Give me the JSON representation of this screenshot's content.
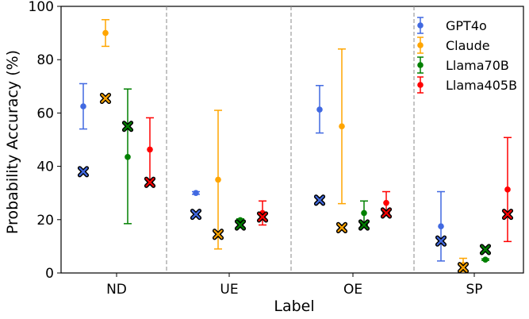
{
  "chart_data": {
    "type": "scatter",
    "xlabel": "Label",
    "ylabel": "Probability Accuracy (%)",
    "categories": [
      "ND",
      "UE",
      "OE",
      "SP"
    ],
    "ylim": [
      0,
      100
    ],
    "yticks": [
      0,
      20,
      40,
      60,
      80,
      100
    ],
    "grid": false,
    "legend_position": "top-right",
    "group_separators": "dashed gray vertical lines between categories",
    "series": [
      {
        "name": "GPT4o",
        "color": "#4169e1",
        "points": [
          {
            "category": "ND",
            "mean": 62.5,
            "low": 54.0,
            "high": 71.0,
            "x_marker": 38.0
          },
          {
            "category": "UE",
            "mean": 30.0,
            "low": 29.5,
            "high": 30.5,
            "x_marker": 22.0
          },
          {
            "category": "OE",
            "mean": 61.3,
            "low": 52.5,
            "high": 70.3,
            "x_marker": 27.3
          },
          {
            "category": "SP",
            "mean": 17.5,
            "low": 4.5,
            "high": 30.5,
            "x_marker": 12.0
          }
        ]
      },
      {
        "name": "Claude",
        "color": "#ffa500",
        "points": [
          {
            "category": "ND",
            "mean": 90.0,
            "low": 85.0,
            "high": 95.0,
            "x_marker": 65.5
          },
          {
            "category": "UE",
            "mean": 35.0,
            "low": 9.0,
            "high": 61.0,
            "x_marker": 14.5
          },
          {
            "category": "OE",
            "mean": 55.0,
            "low": 26.0,
            "high": 84.0,
            "x_marker": 17.0
          },
          {
            "category": "SP",
            "mean": 3.0,
            "low": 0.5,
            "high": 5.5,
            "x_marker": 2.0
          }
        ]
      },
      {
        "name": "Llama70B",
        "color": "#008000",
        "points": [
          {
            "category": "ND",
            "mean": 43.5,
            "low": 18.5,
            "high": 69.0,
            "x_marker": 55.0
          },
          {
            "category": "UE",
            "mean": 19.8,
            "low": 19.3,
            "high": 20.3,
            "x_marker": 18.0
          },
          {
            "category": "OE",
            "mean": 22.5,
            "low": 18.0,
            "high": 27.0,
            "x_marker": 18.0
          },
          {
            "category": "SP",
            "mean": 5.0,
            "low": 4.7,
            "high": 5.3,
            "x_marker": 8.8
          }
        ]
      },
      {
        "name": "Llama405B",
        "color": "#ff0000",
        "points": [
          {
            "category": "ND",
            "mean": 46.3,
            "low": 34.5,
            "high": 58.2,
            "x_marker": 34.0
          },
          {
            "category": "UE",
            "mean": 22.5,
            "low": 18.0,
            "high": 27.0,
            "x_marker": 21.0
          },
          {
            "category": "OE",
            "mean": 26.3,
            "low": 22.5,
            "high": 30.5,
            "x_marker": 22.5
          },
          {
            "category": "SP",
            "mean": 31.3,
            "low": 11.8,
            "high": 50.8,
            "x_marker": 22.0
          }
        ]
      }
    ]
  }
}
